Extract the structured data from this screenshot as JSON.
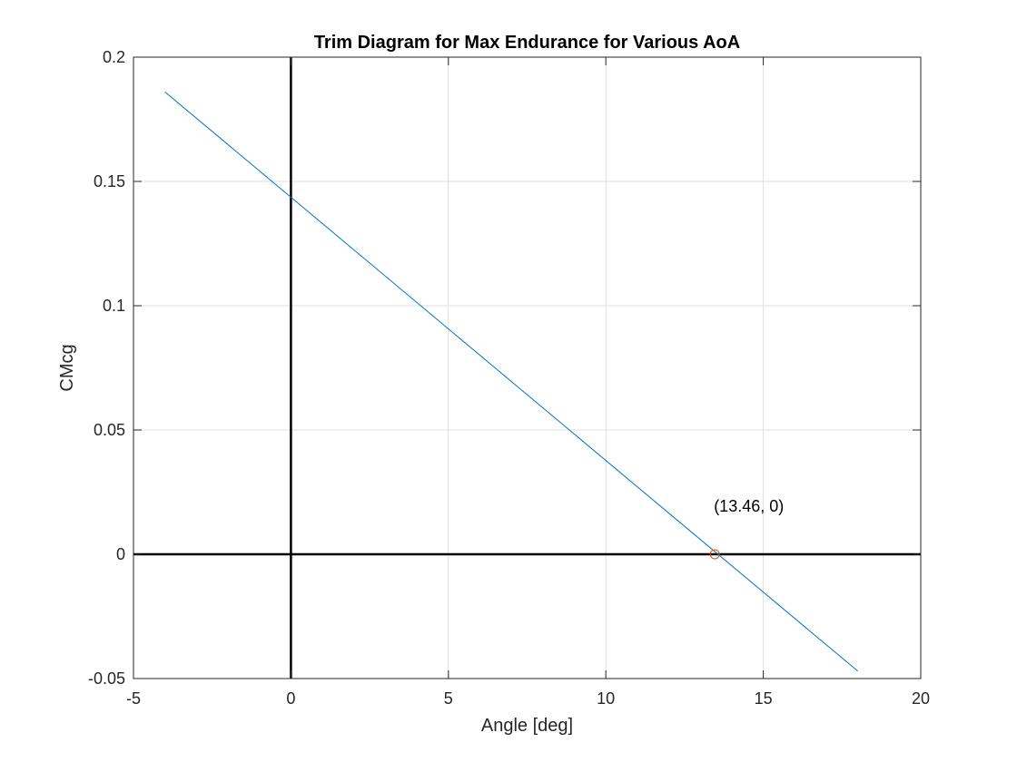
{
  "chart_data": {
    "type": "line",
    "title": "Trim Diagram for Max Endurance for Various AoA",
    "xlabel": "Angle [deg]",
    "ylabel": "CMcg",
    "xlim": [
      -5,
      20
    ],
    "ylim": [
      -0.05,
      0.2
    ],
    "xticks": [
      -5,
      0,
      5,
      10,
      15,
      20
    ],
    "xtick_labels": [
      "-5",
      "0",
      "5",
      "10",
      "15",
      "20"
    ],
    "yticks": [
      -0.05,
      0,
      0.05,
      0.1,
      0.15,
      0.2
    ],
    "ytick_labels": [
      "-0.05",
      "0",
      "0.05",
      "0.1",
      "0.15",
      "0.2"
    ],
    "grid": true,
    "series": [
      {
        "x": [
          -4,
          18
        ],
        "y": [
          0.186,
          -0.047
        ],
        "color": "#0072BD"
      }
    ],
    "reference_lines": [
      {
        "orientation": "horizontal",
        "value": 0,
        "color": "#000000"
      },
      {
        "orientation": "vertical",
        "value": 0,
        "color": "#000000"
      }
    ],
    "marker": {
      "x": 13.46,
      "y": 0,
      "color": "#D95319",
      "shape": "circle"
    },
    "annotation": {
      "text": "(13.46, 0)",
      "x": 13.46,
      "y": 0
    }
  }
}
